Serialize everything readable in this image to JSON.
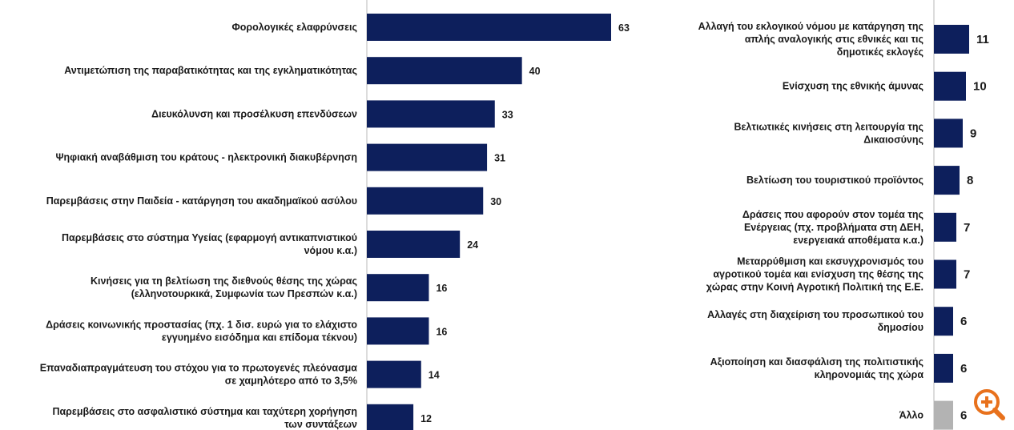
{
  "chart_data": [
    {
      "type": "bar",
      "orientation": "horizontal",
      "categories": [
        "Φορολογικές ελαφρύνσεις",
        "Αντιμετώπιση της παραβατικότητας και της εγκληματικότητας",
        "Διευκόλυνση και προσέλκυση επενδύσεων",
        "Ψηφιακή αναβάθμιση του κράτους - ηλεκτρονική διακυβέρνηση",
        "Παρεμβάσεις στην Παιδεία - κατάργηση του ακαδημαϊκού ασύλου",
        "Παρεμβάσεις στο σύστημα Υγείας (εφαρμογή αντικαπνιστικού νόμου κ.α.)",
        "Κινήσεις για τη βελτίωση της διεθνούς θέσης της χώρας (ελληνοτουρκικά, Συμφωνία των Πρεσπών κ.α.)",
        "Δράσεις κοινωνικής προστασίας (πχ. 1 δισ. ευρώ για το ελάχιστο εγγυημένο εισόδημα και επίδομα τέκνου)",
        "Επαναδιαπραγμάτευση του στόχου για το πρωτογενές πλεόνασμα σε χαμηλότερο από το 3,5%",
        "Παρεμβάσεις στο ασφαλιστικό σύστημα και ταχύτερη χορήγηση των συντάξεων"
      ],
      "category_lines": [
        [
          "Φορολογικές ελαφρύνσεις"
        ],
        [
          "Αντιμετώπιση της παραβατικότητας και της εγκληματικότητας"
        ],
        [
          "Διευκόλυνση και προσέλκυση επενδύσεων"
        ],
        [
          "Ψηφιακή αναβάθμιση του κράτους - ηλεκτρονική διακυβέρνηση"
        ],
        [
          "Παρεμβάσεις στην Παιδεία - κατάργηση του ακαδημαϊκού ασύλου"
        ],
        [
          "Παρεμβάσεις στο σύστημα Υγείας (εφαρμογή αντικαπνιστικού",
          "νόμου κ.α.)"
        ],
        [
          "Κινήσεις για τη βελτίωση της διεθνούς θέσης της χώρας",
          "(ελληνοτουρκικά, Συμφωνία των Πρεσπών κ.α.)"
        ],
        [
          "Δράσεις κοινωνικής προστασίας (πχ. 1 δισ. ευρώ για το ελάχιστο",
          "εγγυημένο εισόδημα και επίδομα τέκνου)"
        ],
        [
          "Επαναδιαπραγμάτευση του στόχου για το πρωτογενές πλεόνασμα",
          "σε χαμηλότερο από το 3,5%"
        ],
        [
          "Παρεμβάσεις στο ασφαλιστικό σύστημα και ταχύτερη χορήγηση",
          "των συντάξεων"
        ]
      ],
      "values": [
        63,
        40,
        33,
        31,
        30,
        24,
        16,
        16,
        14,
        12
      ],
      "value_labels": [
        "63",
        "40",
        "33",
        "31",
        "30",
        "24",
        "16",
        "16",
        "14",
        "12"
      ],
      "xlim": [
        0,
        63
      ],
      "bar_color": "#0d1f5c"
    },
    {
      "type": "bar",
      "orientation": "horizontal",
      "categories": [
        "Αλλαγή του εκλογικού νόμου με κατάργηση της απλής αναλογικής στις εθνικές και τις δημοτικές εκλογές",
        "Ενίσχυση της εθνικής άμυνας",
        "Βελτιωτικές κινήσεις στη λειτουργία της Δικαιοσύνης",
        "Βελτίωση του τουριστικού προϊόντος",
        "Δράσεις που αφορούν στον τομέα της Ενέργειας (πχ. προβλήματα στη ΔΕΗ, ενεργειακά αποθέματα κ.α.)",
        "Μεταρρύθμιση και εκσυγχρονισμός του αγροτικού τομέα και ενίσχυση της θέσης της χώρας στην Κοινή Αγροτική Πολιτική της Ε.Ε.",
        "Αλλαγές στη διαχείριση του προσωπικού του δημοσίου",
        "Αξιοποίηση και διασφάλιση της πολιτιστικής κληρονομιάς της χώρα",
        "Άλλο"
      ],
      "category_lines": [
        [
          "Αλλαγή του εκλογικού νόμου με κατάργηση της",
          "απλής αναλογικής στις εθνικές και τις",
          "δημοτικές εκλογές"
        ],
        [
          "Ενίσχυση της εθνικής άμυνας"
        ],
        [
          "Βελτιωτικές κινήσεις στη λειτουργία της",
          "Δικαιοσύνης"
        ],
        [
          "Βελτίωση του τουριστικού προϊόντος"
        ],
        [
          "Δράσεις που αφορούν στον τομέα της",
          "Ενέργειας (πχ. προβλήματα στη ΔΕΗ,",
          "ενεργειακά αποθέματα κ.α.)"
        ],
        [
          "Μεταρρύθμιση και εκσυγχρονισμός του",
          "αγροτικού τομέα και ενίσχυση της θέσης της",
          "χώρας στην Κοινή Αγροτική Πολιτική της Ε.Ε."
        ],
        [
          "Αλλαγές στη διαχείριση του προσωπικού του",
          "δημοσίου"
        ],
        [
          "Αξιοποίηση και διασφάλιση της πολιτιστικής",
          "κληρονομιάς της χώρα"
        ],
        [
          "Άλλο"
        ]
      ],
      "values": [
        11,
        10,
        9,
        8,
        7,
        7,
        6,
        6,
        6
      ],
      "value_labels": [
        "11",
        "10",
        "9",
        "8",
        "7",
        "7",
        "6",
        "6",
        "6"
      ],
      "xlim": [
        0,
        63
      ],
      "bar_color": "#0d1f5c",
      "other_bar_color": "#b3b3b3"
    }
  ],
  "zoom_button": {
    "icon": "zoom-in-icon",
    "color": "#e8711c"
  }
}
